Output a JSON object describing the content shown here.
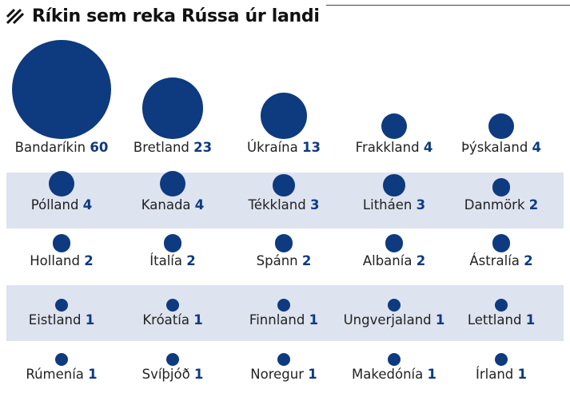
{
  "title": "Ríkin sem reka Rússa úr landi",
  "colors": {
    "dot": "#0e3a80",
    "band": "#dde3ef",
    "number": "#0e3a80"
  },
  "icon": "hatch-icon",
  "chart_data": {
    "type": "bubble-grid",
    "title": "Ríkin sem reka Rússa úr landi",
    "items": [
      {
        "country": "Bandaríkin",
        "value": 60
      },
      {
        "country": "Bretland",
        "value": 23
      },
      {
        "country": "Úkraína",
        "value": 13
      },
      {
        "country": "Frakkland",
        "value": 4
      },
      {
        "country": "Þýskaland",
        "value": 4
      },
      {
        "country": "Pólland",
        "value": 4
      },
      {
        "country": "Kanada",
        "value": 4
      },
      {
        "country": "Tékkland",
        "value": 3
      },
      {
        "country": "Litháen",
        "value": 3
      },
      {
        "country": "Danmörk",
        "value": 2
      },
      {
        "country": "Holland",
        "value": 2
      },
      {
        "country": "Ítalía",
        "value": 2
      },
      {
        "country": "Spánn",
        "value": 2
      },
      {
        "country": "Albanía",
        "value": 2
      },
      {
        "country": "Ástralía",
        "value": 2
      },
      {
        "country": "Eistland",
        "value": 1
      },
      {
        "country": "Króatía",
        "value": 1
      },
      {
        "country": "Finnland",
        "value": 1
      },
      {
        "country": "Ungverjaland",
        "value": 1
      },
      {
        "country": "Lettland",
        "value": 1
      },
      {
        "country": "Rúmenía",
        "value": 1
      },
      {
        "country": "Svíþjóð",
        "value": 1
      },
      {
        "country": "Noregur",
        "value": 1
      },
      {
        "country": "Makedónía",
        "value": 1
      },
      {
        "country": "Írland",
        "value": 1
      }
    ]
  }
}
